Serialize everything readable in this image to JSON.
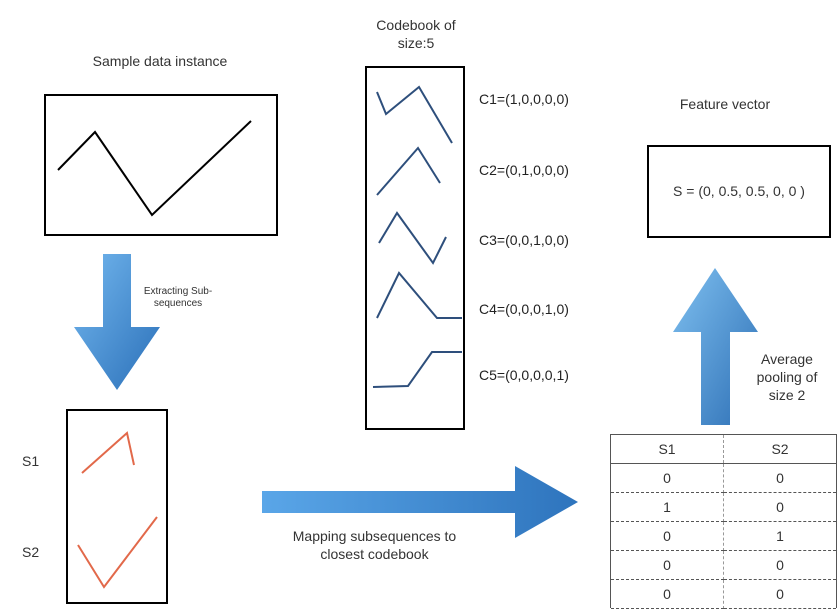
{
  "sample": {
    "title": "Sample data instance"
  },
  "extract": {
    "label": "Extracting Sub-sequences"
  },
  "subsequences": {
    "s1_label": "S1",
    "s2_label": "S2"
  },
  "mapping": {
    "label": "Mapping subsequences to closest codebook"
  },
  "codebook": {
    "title": "Codebook of size:5",
    "codes": [
      {
        "name": "C1",
        "text": "C1=(1,0,0,0,0)"
      },
      {
        "name": "C2",
        "text": "C2=(0,1,0,0,0)"
      },
      {
        "name": "C3",
        "text": "C3=(0,0,1,0,0)"
      },
      {
        "name": "C4",
        "text": "C4=(0,0,0,1,0)"
      },
      {
        "name": "C5",
        "text": "C5=(0,0,0,0,1)"
      }
    ]
  },
  "feature": {
    "title": "Feature vector",
    "value": "S = (0, 0.5, 0.5, 0, 0 )"
  },
  "pooling": {
    "label": "Average pooling of size 2"
  },
  "table": {
    "headers": [
      "S1",
      "S2"
    ],
    "rows": [
      [
        "0",
        "0"
      ],
      [
        "1",
        "0"
      ],
      [
        "0",
        "1"
      ],
      [
        "0",
        "0"
      ],
      [
        "0",
        "0"
      ]
    ]
  },
  "colors": {
    "arrow": "#3f8fd6",
    "code_line": "#2e4f7c",
    "sub_line": "#e2694a"
  }
}
